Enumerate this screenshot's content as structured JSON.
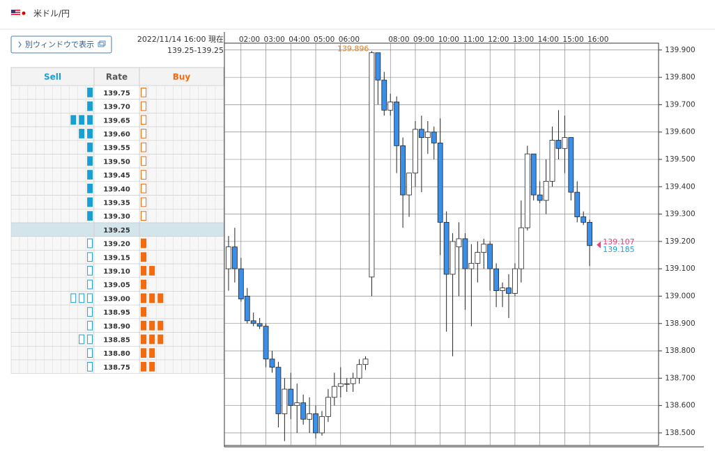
{
  "header": {
    "title": "米ドル/円"
  },
  "button": {
    "label": "別ウィンドウで表示"
  },
  "order_book": {
    "timestamp": "2022/11/14 16:00 現在",
    "price": "139.25-139.25",
    "columns": [
      "Sell",
      "Rate",
      "Buy"
    ],
    "sell_color": "#1a9fd4",
    "buy_color": "#f26b0f",
    "rows": [
      {
        "rate": "139.75",
        "sell": 1,
        "buy": 1
      },
      {
        "rate": "139.70",
        "sell": 1,
        "buy": 1
      },
      {
        "rate": "139.65",
        "sell": 3,
        "buy": 1
      },
      {
        "rate": "139.60",
        "sell": 2,
        "buy": 1
      },
      {
        "rate": "139.55",
        "sell": 1,
        "buy": 1
      },
      {
        "rate": "139.50",
        "sell": 1,
        "buy": 1
      },
      {
        "rate": "139.45",
        "sell": 1,
        "buy": 1
      },
      {
        "rate": "139.40",
        "sell": 1,
        "buy": 1
      },
      {
        "rate": "139.35",
        "sell": 1,
        "buy": 1
      },
      {
        "rate": "139.30",
        "sell": 1,
        "buy": 1
      },
      {
        "rate": "139.25",
        "sell": 0,
        "buy": 0,
        "highlighted": true
      },
      {
        "rate": "139.20",
        "sell": 1,
        "buy": 1
      },
      {
        "rate": "139.15",
        "sell": 1,
        "buy": 1
      },
      {
        "rate": "139.10",
        "sell": 1,
        "buy": 2
      },
      {
        "rate": "139.05",
        "sell": 1,
        "buy": 1
      },
      {
        "rate": "139.00",
        "sell": 3,
        "buy": 3
      },
      {
        "rate": "138.95",
        "sell": 1,
        "buy": 1
      },
      {
        "rate": "138.90",
        "sell": 1,
        "buy": 3
      },
      {
        "rate": "138.85",
        "sell": 2,
        "buy": 3
      },
      {
        "rate": "138.80",
        "sell": 1,
        "buy": 2
      },
      {
        "rate": "138.75",
        "sell": 1,
        "buy": 2
      }
    ]
  },
  "chart_data": {
    "type": "candlestick",
    "x": [
      "01:30",
      "01:45",
      "02:00",
      "02:15",
      "02:30",
      "02:45",
      "03:00",
      "03:15",
      "03:30",
      "03:45",
      "04:00",
      "04:15",
      "04:30",
      "04:45",
      "05:00",
      "05:15",
      "05:30",
      "05:45",
      "06:00",
      "06:15",
      "06:30",
      "06:45",
      "07:00",
      "07:15",
      "07:30",
      "07:45",
      "08:00",
      "08:15",
      "08:30",
      "08:45",
      "09:00",
      "09:15",
      "09:30",
      "09:45",
      "10:00",
      "10:15",
      "10:30",
      "10:45",
      "11:00",
      "11:15",
      "11:30",
      "11:45",
      "12:00",
      "12:15",
      "12:30",
      "12:45",
      "13:00",
      "13:15",
      "13:30",
      "13:45",
      "14:00",
      "14:15",
      "14:30",
      "14:45",
      "15:00",
      "15:15",
      "15:30",
      "15:45",
      "16:00"
    ],
    "open": [
      139.1,
      139.18,
      139.1,
      139.0,
      138.91,
      138.9,
      138.89,
      138.77,
      138.74,
      138.57,
      138.66,
      138.6,
      138.61,
      138.55,
      138.57,
      138.5,
      138.56,
      138.63,
      138.67,
      138.68,
      138.68,
      138.7,
      138.75,
      139.07,
      139.89,
      139.79,
      139.68,
      139.71,
      139.55,
      139.37,
      139.45,
      139.61,
      139.58,
      139.6,
      139.56,
      139.27,
      139.08,
      139.18,
      139.21,
      139.1,
      139.12,
      139.16,
      139.19,
      139.1,
      139.02,
      139.03,
      139.01,
      139.1,
      139.25,
      139.52,
      139.37,
      139.35,
      139.42,
      139.57,
      139.54,
      139.58,
      139.38,
      139.29,
      139.27
    ],
    "high": [
      139.22,
      139.25,
      139.14,
      139.03,
      138.94,
      138.92,
      138.9,
      138.8,
      138.76,
      138.7,
      138.72,
      138.68,
      138.64,
      138.63,
      138.6,
      138.58,
      138.66,
      138.72,
      138.74,
      138.7,
      138.72,
      138.77,
      138.78,
      139.896,
      139.89,
      139.82,
      139.74,
      139.73,
      139.58,
      139.45,
      139.64,
      139.66,
      139.64,
      139.62,
      139.65,
      139.31,
      139.23,
      139.27,
      139.23,
      139.19,
      139.2,
      139.21,
      139.2,
      139.12,
      139.05,
      139.08,
      139.12,
      139.35,
      139.55,
      139.52,
      139.42,
      139.5,
      139.62,
      139.68,
      139.66,
      139.58,
      139.42,
      139.31,
      139.28
    ],
    "low": [
      139.02,
      139.05,
      138.98,
      138.9,
      138.89,
      138.88,
      138.74,
      138.72,
      138.52,
      138.47,
      138.55,
      138.5,
      138.53,
      138.5,
      138.48,
      138.49,
      138.54,
      138.6,
      138.63,
      138.65,
      138.65,
      138.68,
      138.73,
      139.0,
      139.7,
      139.66,
      139.66,
      139.45,
      139.25,
      139.29,
      139.4,
      139.38,
      139.52,
      139.5,
      139.15,
      138.87,
      138.78,
      139.0,
      138.95,
      138.89,
      139.05,
      139.1,
      139.02,
      138.96,
      138.96,
      138.92,
      139.0,
      139.05,
      139.24,
      139.35,
      139.34,
      139.3,
      139.4,
      139.5,
      139.45,
      139.35,
      139.27,
      139.26,
      139.11
    ],
    "close": [
      139.18,
      139.1,
      138.99,
      138.91,
      138.9,
      138.89,
      138.77,
      138.74,
      138.57,
      138.66,
      138.6,
      138.61,
      138.55,
      138.57,
      138.5,
      138.56,
      138.63,
      138.67,
      138.68,
      138.68,
      138.7,
      138.75,
      138.77,
      139.89,
      139.79,
      139.68,
      139.71,
      139.55,
      139.37,
      139.45,
      139.61,
      139.58,
      139.6,
      139.56,
      139.27,
      139.08,
      139.2,
      139.21,
      139.1,
      139.12,
      139.16,
      139.19,
      139.1,
      139.02,
      139.03,
      139.01,
      139.1,
      139.25,
      139.52,
      139.37,
      139.35,
      139.42,
      139.57,
      139.54,
      139.58,
      139.38,
      139.29,
      139.27,
      139.185
    ],
    "up_color": "#ffffff",
    "down_color": "#3b8fe8",
    "xlim": [
      "01:20",
      "18:46"
    ],
    "xticks": [
      "02:00",
      "03:00",
      "04:00",
      "05:00",
      "06:00",
      "08:00",
      "09:00",
      "10:00",
      "11:00",
      "12:00",
      "13:00",
      "14:00",
      "15:00",
      "16:00"
    ],
    "ylim": [
      138.454,
      139.925
    ],
    "yticks": [
      {
        "value": 138.5,
        "label": "138.500"
      },
      {
        "value": 138.6,
        "label": "138.600"
      },
      {
        "value": 138.7,
        "label": "138.700"
      },
      {
        "value": 138.8,
        "label": "138.800"
      },
      {
        "value": 138.9,
        "label": "138.900"
      },
      {
        "value": 139.0,
        "label": "139.000"
      },
      {
        "value": 139.1,
        "label": "139.100"
      },
      {
        "value": 139.2,
        "label": "139.200"
      },
      {
        "value": 139.3,
        "label": "139.300"
      },
      {
        "value": 139.4,
        "label": "139.400"
      },
      {
        "value": 139.5,
        "label": "139.500"
      },
      {
        "value": 139.6,
        "label": "139.600"
      },
      {
        "value": 139.7,
        "label": "139.700"
      },
      {
        "value": 139.8,
        "label": "139.800"
      },
      {
        "value": 139.9,
        "label": "139.900"
      }
    ],
    "grid": true,
    "max_label": {
      "text": "139.896",
      "color": "#d9822b"
    },
    "price_labels": [
      {
        "text": "139.107",
        "color": "#e0457b"
      },
      {
        "text": "139.185",
        "color": "#1aa3d9"
      }
    ]
  }
}
